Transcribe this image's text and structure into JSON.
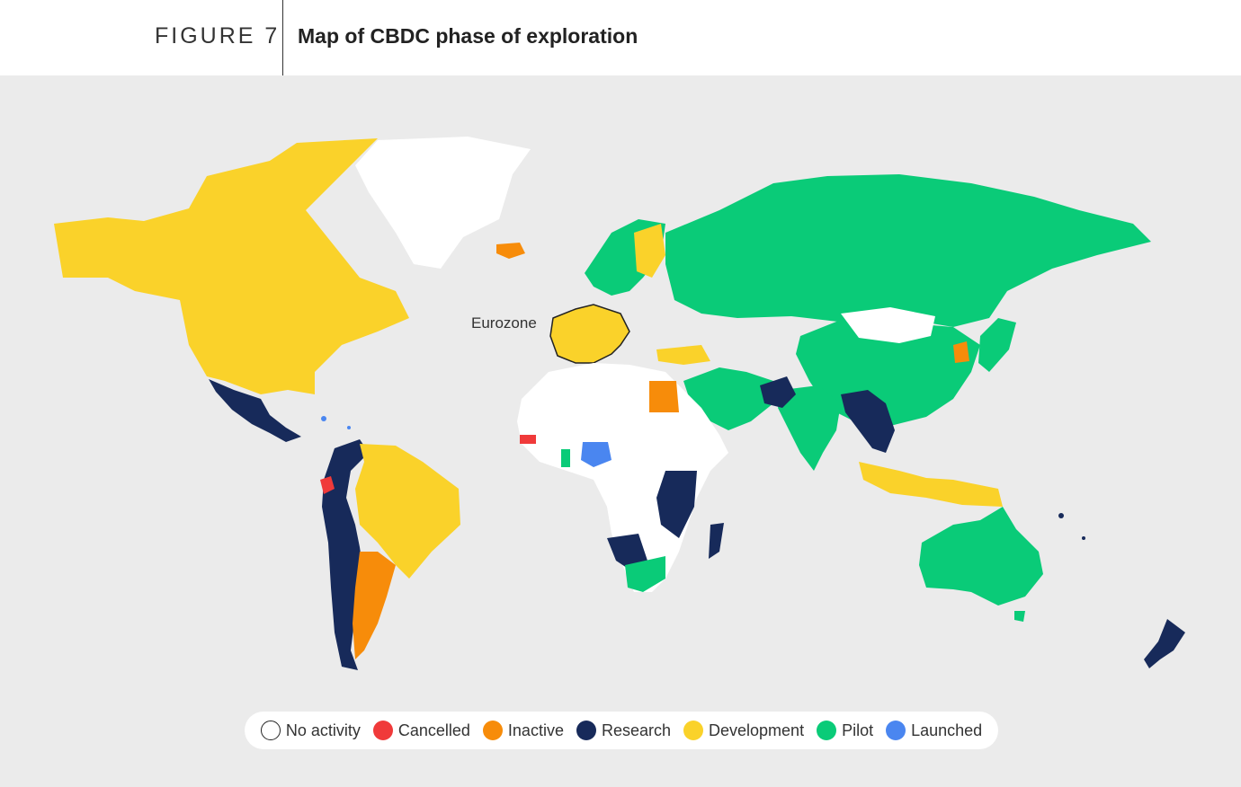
{
  "header": {
    "figure_label": "FIGURE 7",
    "title": "Map of CBDC phase of exploration"
  },
  "map": {
    "annotation": "Eurozone",
    "background": "#ebebeb"
  },
  "legend": [
    {
      "label": "No activity",
      "color": "#ffffff",
      "border": "#222222"
    },
    {
      "label": "Cancelled",
      "color": "#f03a3a"
    },
    {
      "label": "Inactive",
      "color": "#f78c0a"
    },
    {
      "label": "Research",
      "color": "#172a5a"
    },
    {
      "label": "Development",
      "color": "#fad22a"
    },
    {
      "label": "Pilot",
      "color": "#0acb78"
    },
    {
      "label": "Launched",
      "color": "#4a86f0"
    }
  ]
}
